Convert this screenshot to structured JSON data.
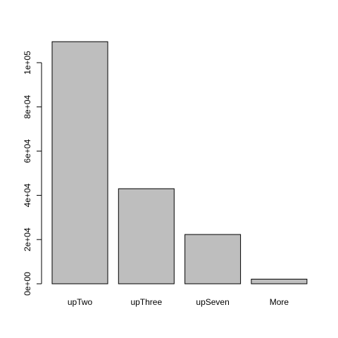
{
  "chart_data": {
    "type": "bar",
    "categories": [
      "upTwo",
      "upThree",
      "upSeven",
      "More"
    ],
    "values": [
      109500,
      43000,
      22300,
      2100
    ],
    "ylim": [
      0,
      100000
    ],
    "yticks": [
      0,
      20000,
      40000,
      60000,
      80000,
      100000
    ],
    "ytick_labels": [
      "0e+00",
      "2e+04",
      "4e+04",
      "6e+04",
      "8e+04",
      "1e+05"
    ],
    "grid": false,
    "legend": "none",
    "bar_color": "#bebebe",
    "bar_border_color": "#000000"
  }
}
